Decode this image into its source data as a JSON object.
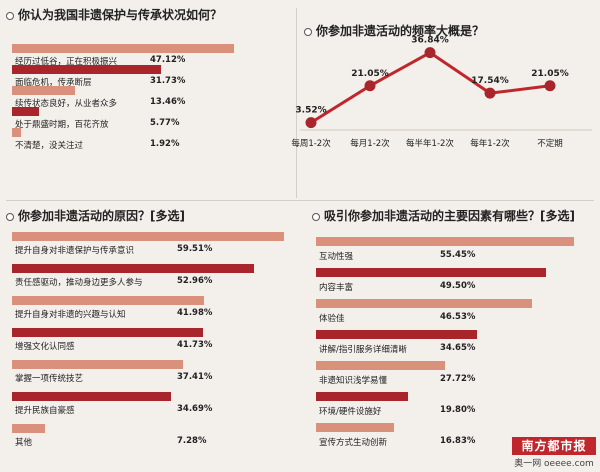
{
  "colors": {
    "dark_bar": "#a8262b",
    "light_bar": "#d9917c",
    "line": "#c0272d"
  },
  "chart_data": [
    {
      "type": "bar",
      "title": "你认为我国非遗保护与传承状况如何？",
      "categories": [
        "经历过低谷，正在积极振兴",
        "面临危机，传承断层",
        "续传状态良好，从业者众多",
        "处于鼎盛时期，百花齐放",
        "不清楚，没关注过"
      ],
      "values": [
        47.12,
        31.73,
        13.46,
        5.77,
        1.92
      ],
      "value_labels": [
        "47.12%",
        "31.73%",
        "13.46%",
        "5.77%",
        "1.92%"
      ],
      "unit": "%"
    },
    {
      "type": "line",
      "title": "你参加非遗活动的频率大概是？",
      "categories": [
        "每周1-2次",
        "每月1-2次",
        "每半年1-2次",
        "每年1-2次",
        "不定期"
      ],
      "values": [
        3.52,
        21.05,
        36.84,
        17.54,
        21.05
      ],
      "value_labels": [
        "3.52%",
        "21.05%",
        "36.84%",
        "17.54%",
        "21.05%"
      ],
      "unit": "%"
    },
    {
      "type": "bar",
      "title": "你参加非遗活动的原因？[多选]",
      "categories": [
        "提升自身对非遗保护与传承意识",
        "责任感驱动，推动身边更多人参与",
        "提升自身对非遗的兴趣与认知",
        "增强文化认同感",
        "掌握一项传统技艺",
        "提升民族自豪感",
        "其他"
      ],
      "values": [
        59.51,
        52.96,
        41.98,
        41.73,
        37.41,
        34.69,
        7.28
      ],
      "value_labels": [
        "59.51%",
        "52.96%",
        "41.98%",
        "41.73%",
        "37.41%",
        "34.69%",
        "7.28%"
      ],
      "unit": "%"
    },
    {
      "type": "bar",
      "title": "吸引你参加非遗活动的主要因素有哪些？[多选]",
      "categories": [
        "互动性强",
        "内容丰富",
        "体验佳",
        "讲解/指引服务详细清晰",
        "非遗知识浅学易懂",
        "环境/硬件设施好",
        "宣传方式生动创新"
      ],
      "values": [
        55.45,
        49.5,
        46.53,
        34.65,
        27.72,
        19.8,
        16.83
      ],
      "value_labels": [
        "55.45%",
        "49.50%",
        "46.53%",
        "34.65%",
        "27.72%",
        "19.80%",
        "16.83%"
      ],
      "unit": "%"
    }
  ],
  "logo": {
    "name": "南方都市报",
    "sub": "奥一网 oeeee.com"
  }
}
